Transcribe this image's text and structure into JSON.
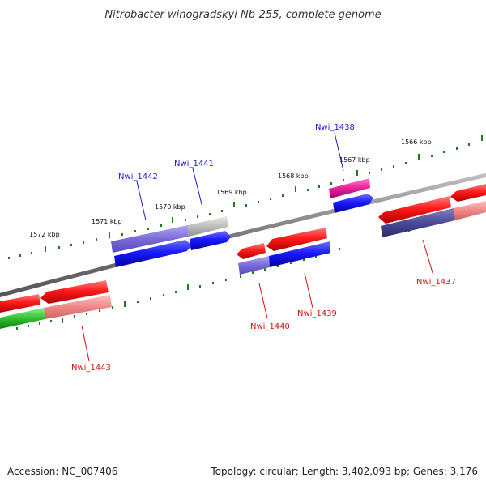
{
  "title": "Nitrobacter winogradskyi Nb-255, complete genome",
  "footer": {
    "accession": "Accession: NC_007406",
    "summary": "Topology: circular; Length: 3,402,093 bp; Genes: 3,176"
  },
  "scale_labels": [
    "1566 kbp",
    "1567 kbp",
    "1568 kbp",
    "1569 kbp",
    "1570 kbp",
    "1571 kbp",
    "1572 kbp"
  ],
  "gene_labels": {
    "nwi_1438": "Nwi_1438",
    "nwi_1441": "Nwi_1441",
    "nwi_1442": "Nwi_1442",
    "nwi_1437": "Nwi_1437",
    "nwi_1439": "Nwi_1439",
    "nwi_1440": "Nwi_1440",
    "nwi_1443": "Nwi_1443"
  },
  "colors": {
    "backbone": "#888888",
    "ticks": "#1e7a1e",
    "red": "#e01010",
    "blue": "#1010e0",
    "purple": "#6a5acd",
    "magenta": "#e0209a",
    "grey": "#b0b0b0",
    "pink": "#f08080",
    "green": "#30c030",
    "navy": "#3a3a8a"
  }
}
